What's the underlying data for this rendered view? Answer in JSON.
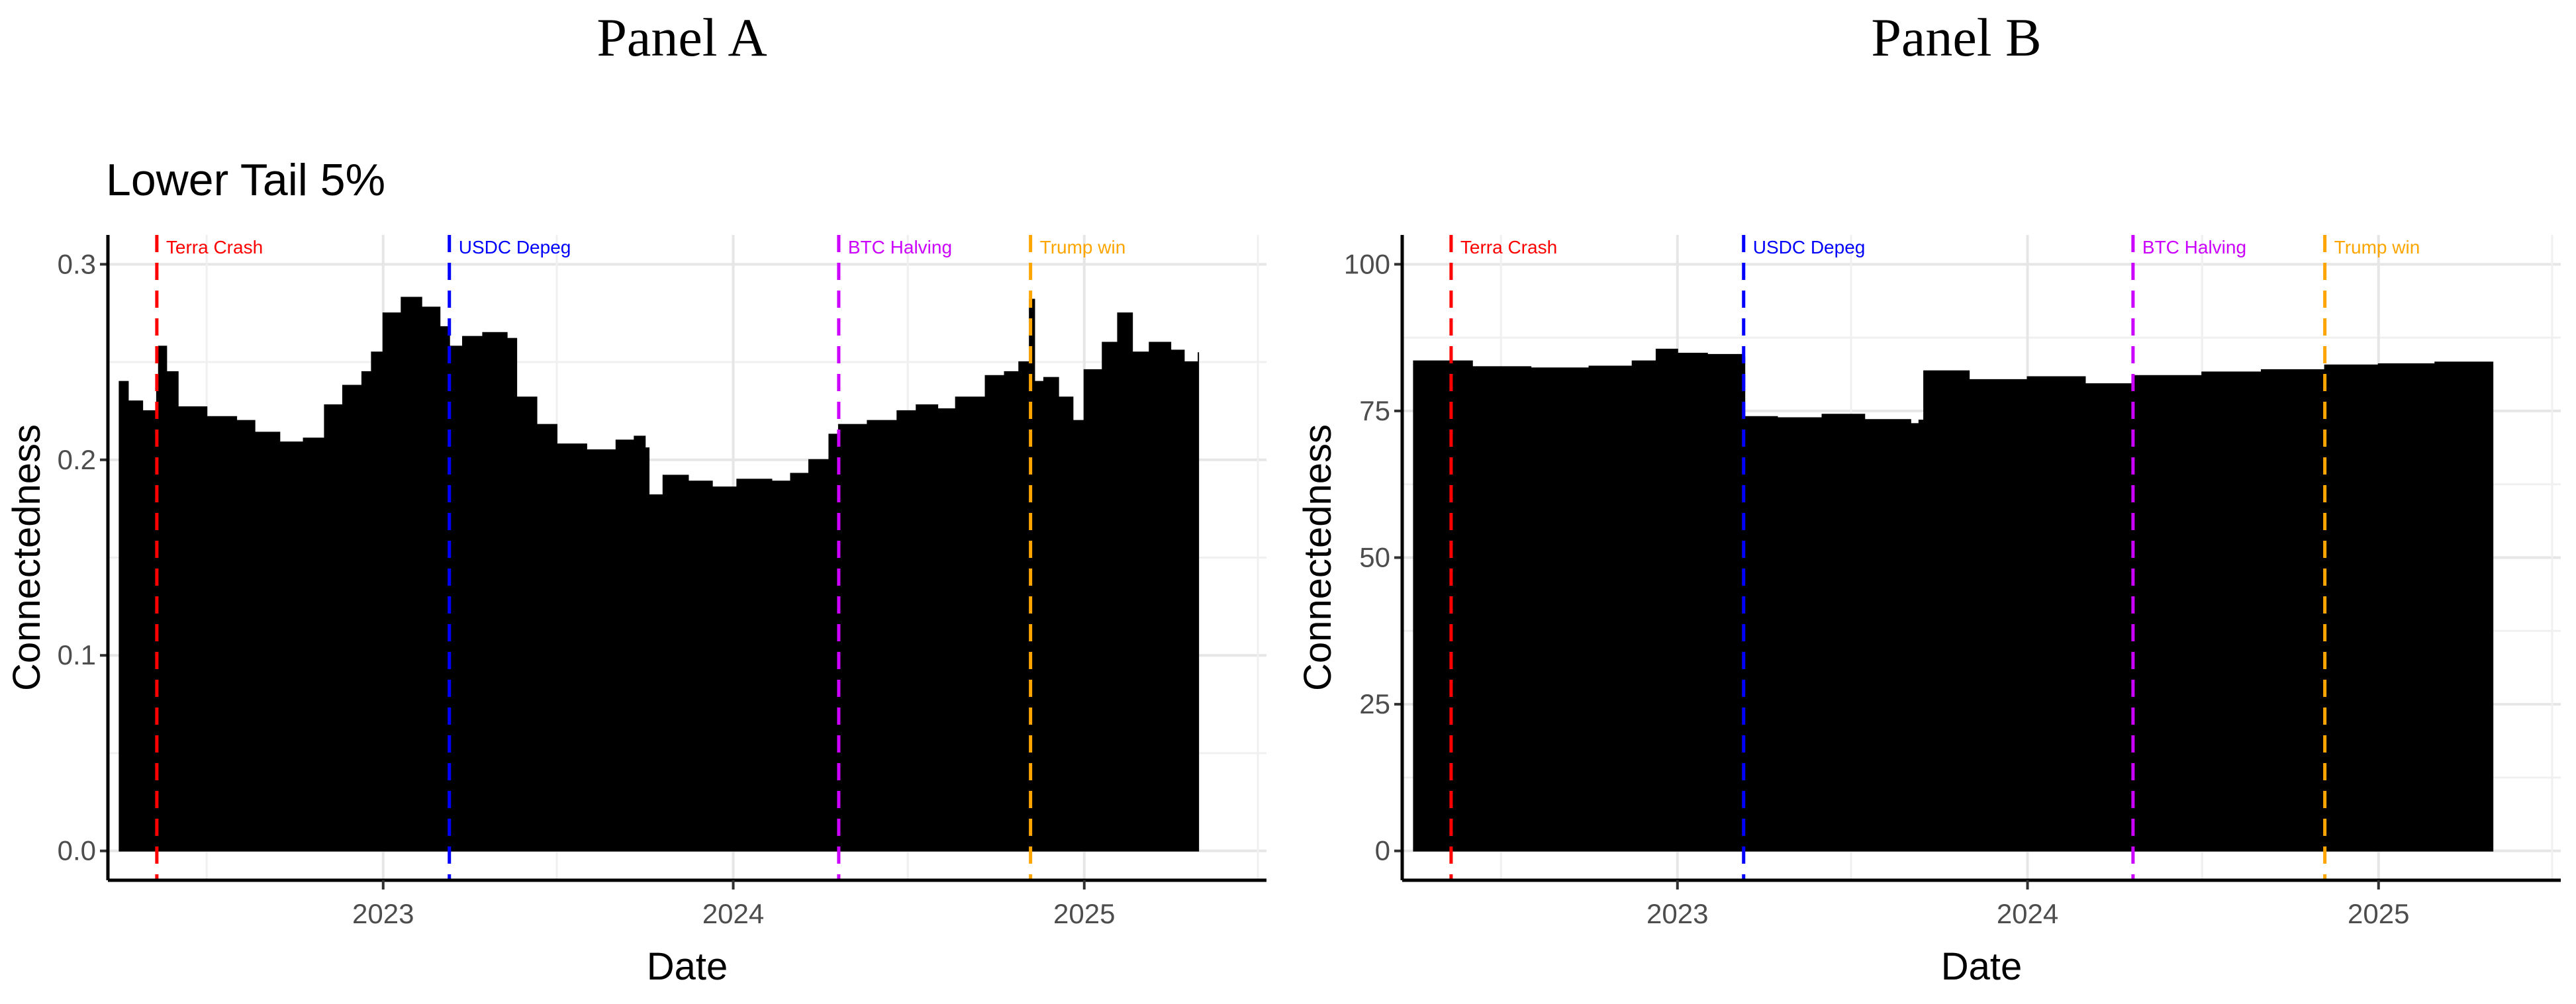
{
  "panels": {
    "a_label": "Panel A",
    "b_label": "Panel B"
  },
  "chart_data": [
    {
      "type": "area",
      "subtitle": "Lower Tail 5%",
      "xlabel": "Date",
      "ylabel": "Connectedness",
      "xlim": [
        "2022-03-20",
        "2025-07-10"
      ],
      "ylim": [
        -0.015,
        0.315
      ],
      "yticks": [
        0.0,
        0.1,
        0.2,
        0.3
      ],
      "ytick_labels": [
        "0.0",
        "0.1",
        "0.2",
        "0.3"
      ],
      "xtick_labels": [
        "2023",
        "2024",
        "2025"
      ],
      "grid": true,
      "fill_color": "#000000",
      "x": [
        "2022-04-01",
        "2022-04-10",
        "2022-04-25",
        "2022-05-10",
        "2022-05-12",
        "2022-05-20",
        "2022-06-01",
        "2022-07-01",
        "2022-08-01",
        "2022-08-20",
        "2022-09-15",
        "2022-10-10",
        "2022-11-01",
        "2022-11-20",
        "2022-12-10",
        "2022-12-20",
        "2023-01-01",
        "2023-01-20",
        "2023-02-10",
        "2023-03-01",
        "2023-03-11",
        "2023-03-25",
        "2023-04-15",
        "2023-05-10",
        "2023-05-20",
        "2023-06-10",
        "2023-07-01",
        "2023-08-01",
        "2023-09-01",
        "2023-09-20",
        "2023-10-01",
        "2023-10-05",
        "2023-10-20",
        "2023-11-15",
        "2023-12-10",
        "2024-01-05",
        "2024-02-10",
        "2024-03-01",
        "2024-03-20",
        "2024-04-10",
        "2024-04-20",
        "2024-05-20",
        "2024-06-20",
        "2024-07-10",
        "2024-08-01",
        "2024-08-20",
        "2024-09-20",
        "2024-10-10",
        "2024-10-25",
        "2024-11-05",
        "2024-11-10",
        "2024-11-20",
        "2024-12-05",
        "2024-12-20",
        "2025-01-01",
        "2025-01-20",
        "2025-02-05",
        "2025-02-20",
        "2025-03-10",
        "2025-04-01",
        "2025-04-15",
        "2025-04-30"
      ],
      "values": [
        0.24,
        0.23,
        0.225,
        0.235,
        0.258,
        0.245,
        0.227,
        0.222,
        0.22,
        0.214,
        0.209,
        0.211,
        0.228,
        0.238,
        0.245,
        0.255,
        0.275,
        0.283,
        0.278,
        0.268,
        0.258,
        0.263,
        0.265,
        0.262,
        0.232,
        0.218,
        0.208,
        0.205,
        0.21,
        0.212,
        0.206,
        0.182,
        0.192,
        0.189,
        0.186,
        0.19,
        0.189,
        0.193,
        0.2,
        0.213,
        0.218,
        0.22,
        0.225,
        0.228,
        0.226,
        0.232,
        0.243,
        0.245,
        0.25,
        0.282,
        0.24,
        0.242,
        0.232,
        0.22,
        0.246,
        0.26,
        0.275,
        0.255,
        0.26,
        0.256,
        0.25,
        0.255
      ],
      "events": [
        {
          "label": "Terra Crash",
          "date": "2022-05-10",
          "color": "#ff0000"
        },
        {
          "label": "USDC Depeg",
          "date": "2023-03-11",
          "color": "#0000ff"
        },
        {
          "label": "BTC Halving",
          "date": "2024-04-20",
          "color": "#cc00ff"
        },
        {
          "label": "Trump win",
          "date": "2024-11-06",
          "color": "#ffa500"
        }
      ]
    },
    {
      "type": "area",
      "subtitle": "",
      "xlabel": "Date",
      "ylabel": "Connectedness",
      "xlim": [
        "2022-03-20",
        "2025-07-10"
      ],
      "ylim": [
        -5,
        105
      ],
      "yticks": [
        0,
        25,
        50,
        75,
        100
      ],
      "ytick_labels": [
        "0",
        "25",
        "50",
        "75",
        "100"
      ],
      "xtick_labels": [
        "2023",
        "2024",
        "2025"
      ],
      "grid": true,
      "fill_color": "#000000",
      "x": [
        "2022-04-01",
        "2022-06-01",
        "2022-08-01",
        "2022-10-01",
        "2022-11-15",
        "2022-12-10",
        "2023-01-01",
        "2023-02-01",
        "2023-03-11",
        "2023-03-12",
        "2023-04-15",
        "2023-06-01",
        "2023-07-15",
        "2023-09-01",
        "2023-09-10",
        "2023-09-15",
        "2023-11-01",
        "2024-01-01",
        "2024-03-01",
        "2024-04-20",
        "2024-07-01",
        "2024-09-01",
        "2024-11-06",
        "2025-01-01",
        "2025-03-01",
        "2025-04-30"
      ],
      "values": [
        83.5,
        82.5,
        82.3,
        82.6,
        83.5,
        85.5,
        84.8,
        84.6,
        84.2,
        74,
        73.8,
        74.4,
        73.5,
        72.8,
        73.4,
        81.8,
        80.3,
        80.8,
        79.6,
        81,
        81.6,
        82,
        82.8,
        83,
        83.3,
        81.5
      ],
      "events": [
        {
          "label": "Terra Crash",
          "date": "2022-05-10",
          "color": "#ff0000"
        },
        {
          "label": "USDC Depeg",
          "date": "2023-03-11",
          "color": "#0000ff"
        },
        {
          "label": "BTC Halving",
          "date": "2024-04-20",
          "color": "#cc00ff"
        },
        {
          "label": "Trump win",
          "date": "2024-11-06",
          "color": "#ffa500"
        }
      ]
    }
  ]
}
